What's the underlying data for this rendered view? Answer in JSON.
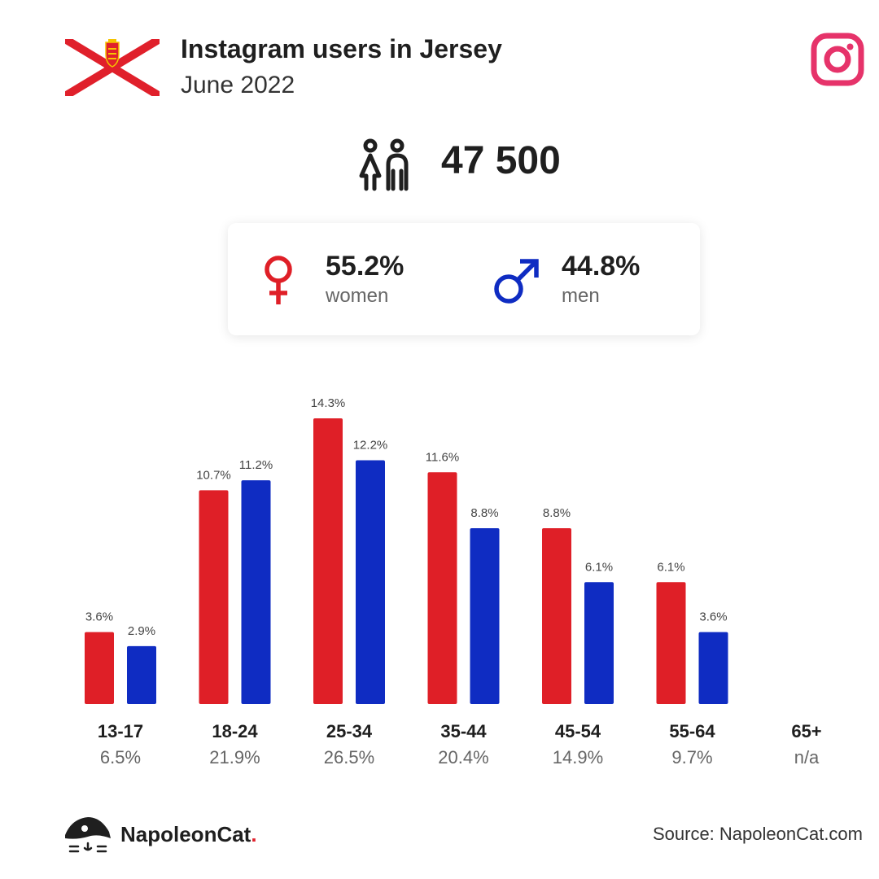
{
  "header": {
    "title": "Instagram users in Jersey",
    "subtitle": "June 2022"
  },
  "total": {
    "value": "47 500"
  },
  "gender": {
    "women": {
      "pct": "55.2%",
      "label": "women"
    },
    "men": {
      "pct": "44.8%",
      "label": "men"
    }
  },
  "colors": {
    "women": "#df1f27",
    "men": "#0f2cc2",
    "instagram": "#e6336a"
  },
  "icons": {
    "flag": "jersey-flag-icon",
    "brand": "instagram-icon",
    "total": "users-icon",
    "women": "female-symbol-icon",
    "men": "male-symbol-icon",
    "logo": "napoleoncat-logo-icon"
  },
  "chart_data": {
    "type": "bar",
    "categories": [
      "13-17",
      "18-24",
      "25-34",
      "35-44",
      "45-54",
      "55-64",
      "65+"
    ],
    "category_totals": [
      "6.5%",
      "21.9%",
      "26.5%",
      "20.4%",
      "14.9%",
      "9.7%",
      "n/a"
    ],
    "series": [
      {
        "name": "women",
        "values": [
          3.6,
          10.7,
          14.3,
          11.6,
          8.8,
          6.1,
          null
        ],
        "labels": [
          "3.6%",
          "10.7%",
          "14.3%",
          "11.6%",
          "8.8%",
          "6.1%",
          ""
        ]
      },
      {
        "name": "men",
        "values": [
          2.9,
          11.2,
          12.2,
          8.8,
          6.1,
          3.6,
          null
        ],
        "labels": [
          "2.9%",
          "11.2%",
          "12.2%",
          "8.8%",
          "6.1%",
          "3.6%",
          ""
        ]
      }
    ],
    "ylim": [
      0,
      14.3
    ],
    "grid": false
  },
  "footer": {
    "brand_name": "NapoleonCat",
    "brand_dot": ".",
    "source": "Source: NapoleonCat.com"
  }
}
